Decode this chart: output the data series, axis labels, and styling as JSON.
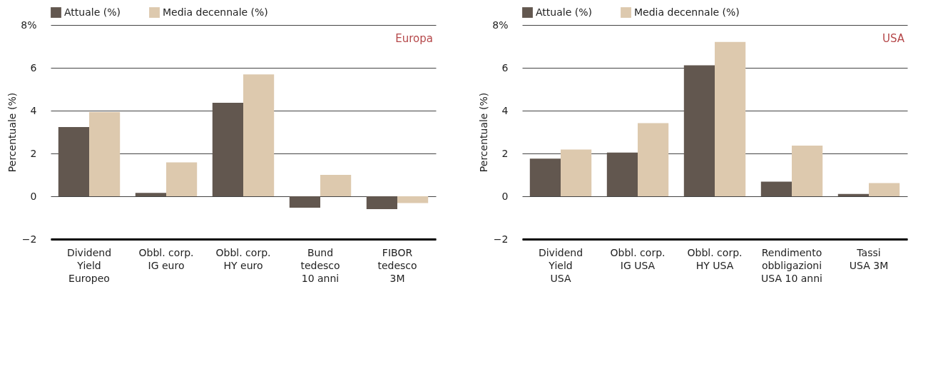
{
  "chart_data": [
    {
      "type": "bar",
      "ylabel": "Percentuale (%)",
      "annotations": [
        "Europa"
      ],
      "categories": [
        "Dividend\nYield\nEuropeo",
        "Obbl. corp.\nIG euro",
        "Obbl. corp.\nHY euro",
        "Bund\ntedesco\n10 anni",
        "FIBOR\ntedesco\n3M"
      ],
      "series": [
        {
          "name": "Attuale (%)",
          "color": "#62574f",
          "values": [
            3.23,
            0.16,
            4.37,
            -0.53,
            -0.6
          ]
        },
        {
          "name": "Media decennale (%)",
          "color": "#ddc9ae",
          "values": [
            3.93,
            1.58,
            5.69,
            1.0,
            -0.32
          ]
        }
      ],
      "ylim": [
        -2,
        8
      ],
      "yticks": [
        -2,
        0,
        2,
        4,
        6,
        {
          "value": 8,
          "label": "8%"
        }
      ],
      "grid": "y",
      "legend": "top left"
    },
    {
      "type": "bar",
      "ylabel": "Percentuale (%)",
      "annotations": [
        "USA"
      ],
      "categories": [
        "Dividend\nYield\nUSA",
        "Obbl. corp.\nIG USA",
        "Obbl. corp.\nHY USA",
        "Rendimento\nobbligazioni\nUSA 10 anni",
        "Tassi\nUSA 3M"
      ],
      "series": [
        {
          "name": "Attuale (%)",
          "color": "#62574f",
          "values": [
            1.76,
            2.04,
            6.12,
            0.68,
            0.11
          ]
        },
        {
          "name": "Media decennale (%)",
          "color": "#ddc9ae",
          "values": [
            2.18,
            3.42,
            7.21,
            2.37,
            0.62
          ]
        }
      ],
      "ylim": [
        -2,
        8
      ],
      "yticks": [
        -2,
        0,
        2,
        4,
        6,
        {
          "value": 8,
          "label": "8%"
        }
      ],
      "grid": "y",
      "legend": "top left"
    }
  ]
}
